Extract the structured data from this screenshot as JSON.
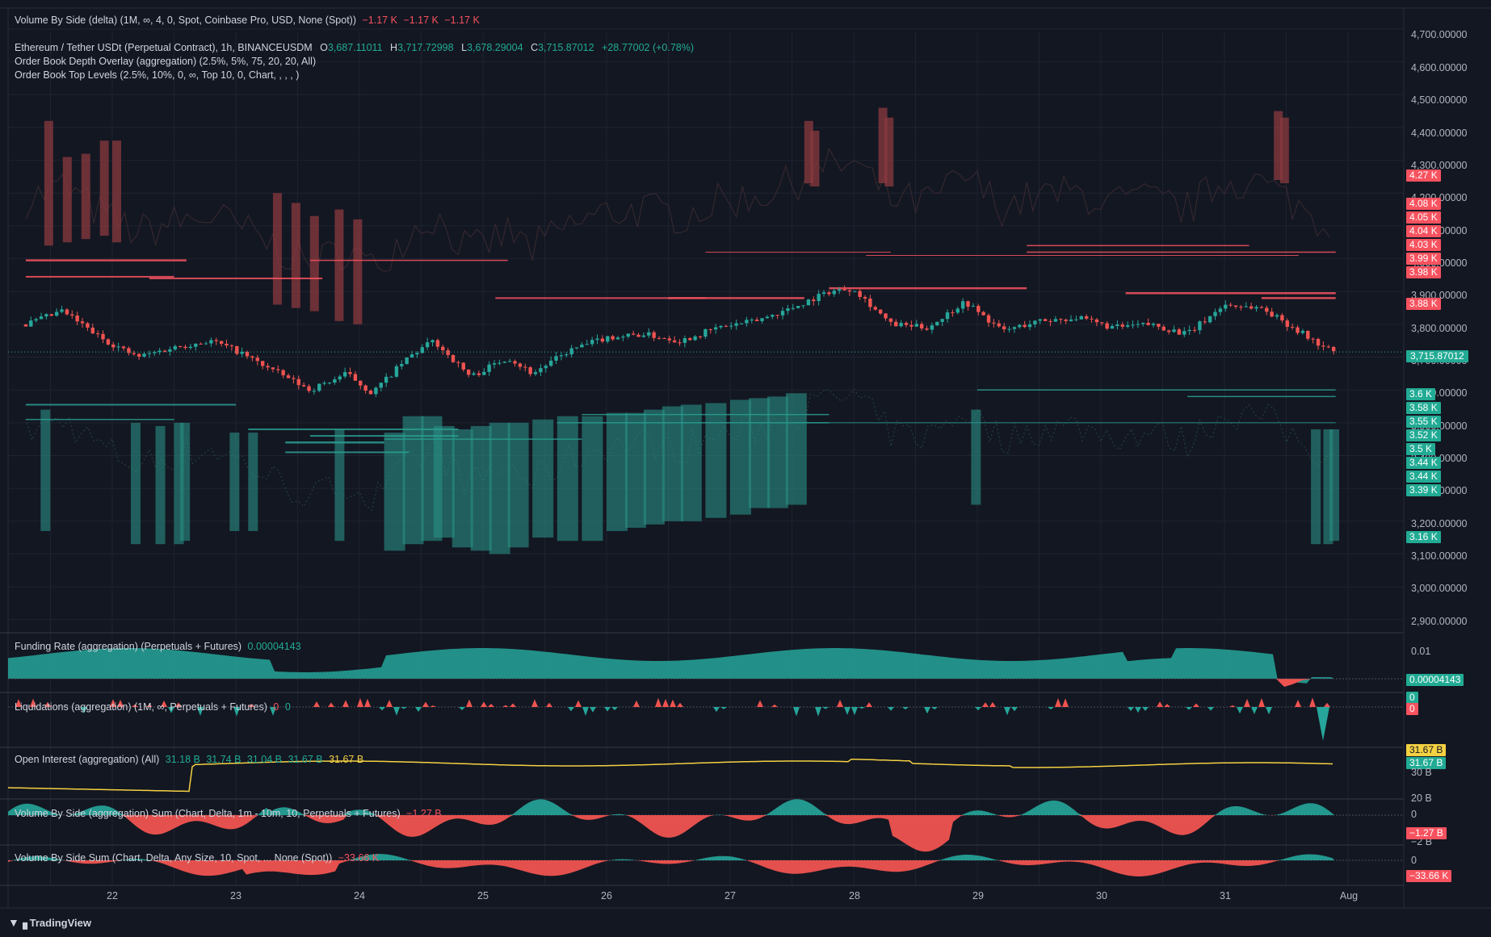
{
  "header": {
    "top_title": "Volume By Side (delta) (1M, ∞, 4, 0, Spot, Coinbase Pro, USD, None (Spot))",
    "top_values": [
      "−1.17 K",
      "−1.17 K",
      "−1.17 K"
    ]
  },
  "main_legend": {
    "symbol": "Ethereum / Tether USDt (Perpetual Contract), 1h, BINANCEUSDM",
    "o_label": "O",
    "o": "3,687.11011",
    "h_label": "H",
    "h": "3,717.72998",
    "l_label": "L",
    "l": "3,678.29004",
    "c_label": "C",
    "c": "3,715.87012",
    "change": "+28.77002 (+0.78%)",
    "ind1": "Order Book Depth Overlay (aggregation) (2.5%, 5%, 75, 20, 20, All)",
    "ind2": "Order Book Top Levels (2.5%, 10%, 0, ∞, Top 10, 0, Chart, , , , )"
  },
  "pane_legends": {
    "funding": {
      "title": "Funding Rate (aggregation) (Perpetuals + Futures)",
      "value": "0.00004143"
    },
    "liq": {
      "title": "Liquidations (aggregation) (1M, ∞, Perpetuals + Futures)",
      "v1": "0",
      "v2": "0"
    },
    "oi": {
      "title": "Open Interest (aggregation) (All)",
      "v1": "31.18 B",
      "v2": "31.74 B",
      "v3": "31.04 B",
      "v4": "31.67 B",
      "v5": "31.67 B"
    },
    "vbs_agg": {
      "title": "Volume By Side (aggregation) Sum (Chart, Delta, 1m - 10m, 10, Perpetuals + Futures)",
      "value": "−1.27 B"
    },
    "vbs_sum": {
      "title": "Volume By Side Sum (Chart, Delta, Any Size, 10, Spot, ... None (Spot))",
      "value": "−33.66 K"
    }
  },
  "price_axis": {
    "ticks": [
      "4,700.00000",
      "4,600.00000",
      "4,500.00000",
      "4,400.00000",
      "4,300.00000",
      "4,200.00000",
      "4,100.00000",
      "4,000.00000",
      "3,900.00000",
      "3,800.00000",
      "3,700.00000",
      "3,600.00000",
      "3,500.00000",
      "3,400.00000",
      "3,300.00000",
      "3,200.00000",
      "3,100.00000",
      "3,000.00000",
      "2,900.00000"
    ],
    "ask_labels": [
      "4.27 K",
      "4.08 K",
      "4.05 K",
      "4.04 K",
      "4.03 K",
      "3.99 K",
      "3.98 K",
      "3.88 K"
    ],
    "last_price": "3,715.87012",
    "bid_labels": [
      "3.6 K",
      "3.58 K",
      "3.55 K",
      "3.52 K",
      "3.5 K",
      "3.44 K",
      "3.44 K",
      "3.39 K",
      "3.16 K"
    ]
  },
  "sub_axes": {
    "funding_tick": "0.01",
    "funding_label": "0.00004143",
    "liq_tick": "0",
    "liq_label": "0",
    "oi_label_yellow": "31.67 B",
    "oi_label_green": "31.67 B",
    "oi_tick": "30 B",
    "oi_tick2": "20 B",
    "vbs_agg_tick": "0",
    "vbs_agg_label": "−1.27 B",
    "vbs_agg_tick2": "−2 B",
    "vbs_sum_tick": "0",
    "vbs_sum_label": "−33.66 K"
  },
  "time_axis": [
    "22",
    "23",
    "24",
    "25",
    "26",
    "27",
    "28",
    "29",
    "30",
    "31",
    "Aug"
  ],
  "brand": "TradingView",
  "colors": {
    "bg": "#131722",
    "up": "#26a69a",
    "down": "#ef5350",
    "grid": "#1f2330",
    "ask_zone": "#8b3a3f",
    "bid_zone": "#2a8f86",
    "oi_line": "#f5d142"
  },
  "chart_data": [
    {
      "type": "candlestick",
      "title": "Ethereum / Tether USDt (Perpetual Contract), 1h, BINANCEUSDM",
      "x": [
        "22",
        "23",
        "24",
        "25",
        "26",
        "27",
        "28",
        "29",
        "30",
        "31",
        "Aug"
      ],
      "close_path": [
        {
          "x": "21.3",
          "y": 3800
        },
        {
          "x": "21.6",
          "y": 3840
        },
        {
          "x": "21.9",
          "y": 3760
        },
        {
          "x": "22.2",
          "y": 3700
        },
        {
          "x": "22.5",
          "y": 3730
        },
        {
          "x": "22.8",
          "y": 3750
        },
        {
          "x": "23.0",
          "y": 3720
        },
        {
          "x": "23.3",
          "y": 3660
        },
        {
          "x": "23.6",
          "y": 3600
        },
        {
          "x": "23.9",
          "y": 3650
        },
        {
          "x": "24.1",
          "y": 3590
        },
        {
          "x": "24.4",
          "y": 3700
        },
        {
          "x": "24.6",
          "y": 3750
        },
        {
          "x": "24.9",
          "y": 3640
        },
        {
          "x": "25.2",
          "y": 3700
        },
        {
          "x": "25.4",
          "y": 3650
        },
        {
          "x": "25.7",
          "y": 3720
        },
        {
          "x": "26.0",
          "y": 3760
        },
        {
          "x": "26.3",
          "y": 3770
        },
        {
          "x": "26.6",
          "y": 3750
        },
        {
          "x": "26.9",
          "y": 3790
        },
        {
          "x": "27.2",
          "y": 3810
        },
        {
          "x": "27.5",
          "y": 3850
        },
        {
          "x": "27.8",
          "y": 3900
        },
        {
          "x": "28.0",
          "y": 3910
        },
        {
          "x": "28.3",
          "y": 3800
        },
        {
          "x": "28.6",
          "y": 3790
        },
        {
          "x": "28.9",
          "y": 3870
        },
        {
          "x": "29.2",
          "y": 3780
        },
        {
          "x": "29.5",
          "y": 3810
        },
        {
          "x": "29.8",
          "y": 3820
        },
        {
          "x": "30.1",
          "y": 3790
        },
        {
          "x": "30.4",
          "y": 3800
        },
        {
          "x": "30.7",
          "y": 3770
        },
        {
          "x": "31.0",
          "y": 3860
        },
        {
          "x": "31.3",
          "y": 3850
        },
        {
          "x": "31.6",
          "y": 3780
        },
        {
          "x": "31.8",
          "y": 3730
        },
        {
          "x": "31.9",
          "y": 3715.87
        }
      ],
      "ylim": [
        2860,
        4700
      ]
    },
    {
      "type": "area",
      "name": "Funding Rate",
      "last": 4.143e-05
    },
    {
      "type": "line",
      "name": "Open Interest",
      "values_B": [
        31.18,
        31.74,
        31.04,
        31.67,
        31.67
      ]
    }
  ]
}
